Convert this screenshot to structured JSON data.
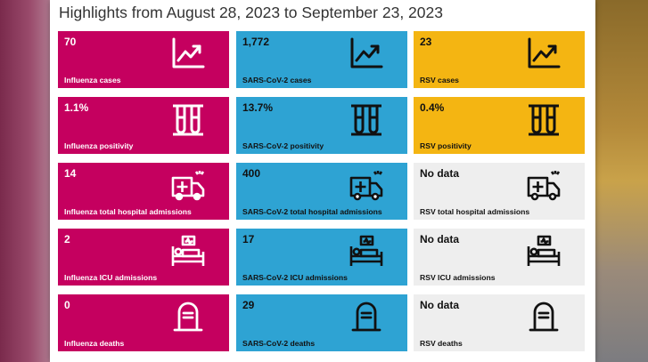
{
  "title": "Highlights from August 28, 2023 to September 23, 2023",
  "colors": {
    "influenza": "#c5005f",
    "sars_cov_2": "#2ea3d3",
    "rsv": "#f4b512",
    "no_data": "#eeeeee"
  },
  "rows": [
    {
      "icon": "trend-chart-icon",
      "tiles": [
        {
          "value": "70",
          "label": "Influenza cases"
        },
        {
          "value": "1,772",
          "label": "SARS-CoV-2 cases"
        },
        {
          "value": "23",
          "label": "RSV cases"
        }
      ]
    },
    {
      "icon": "test-tubes-icon",
      "tiles": [
        {
          "value": "1.1%",
          "label": "Influenza positivity"
        },
        {
          "value": "13.7%",
          "label": "SARS-CoV-2 positivity"
        },
        {
          "value": "0.4%",
          "label": "RSV positivity"
        }
      ]
    },
    {
      "icon": "ambulance-icon",
      "tiles": [
        {
          "value": "14",
          "label": "Influenza total hospital admissions"
        },
        {
          "value": "400",
          "label": "SARS-CoV-2 total hospital admissions"
        },
        {
          "value": "No data",
          "label": "RSV total hospital admissions"
        }
      ]
    },
    {
      "icon": "hospital-bed-icon",
      "tiles": [
        {
          "value": "2",
          "label": "Influenza ICU admissions"
        },
        {
          "value": "17",
          "label": "SARS-CoV-2 ICU admissions"
        },
        {
          "value": "No data",
          "label": "RSV ICU admissions"
        }
      ]
    },
    {
      "icon": "tombstone-icon",
      "tiles": [
        {
          "value": "0",
          "label": "Influenza deaths"
        },
        {
          "value": "29",
          "label": "SARS-CoV-2 deaths"
        },
        {
          "value": "No data",
          "label": "RSV deaths"
        }
      ]
    }
  ]
}
